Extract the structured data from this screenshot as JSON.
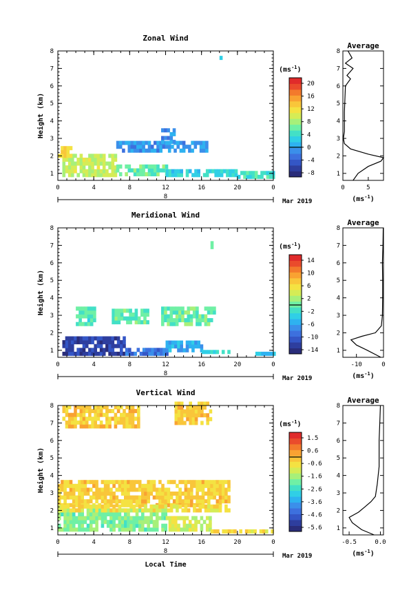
{
  "figure": {
    "xlabel": "Local Time",
    "ylabel": "Height (km)",
    "date_label": "Mar 2019",
    "day_marker": "8",
    "unit_label": "(ms",
    "unit_exp": "-1",
    "unit_close": ")",
    "average_title": "Average"
  },
  "chart_data": [
    {
      "type": "heatmap",
      "title": "Zonal Wind",
      "xlabel": "",
      "ylabel": "Height (km)",
      "x_ticks": [
        "0",
        "4",
        "8",
        "12",
        "16",
        "20",
        "0"
      ],
      "y_ticks": [
        "1",
        "2",
        "3",
        "4",
        "5",
        "6",
        "7",
        "8"
      ],
      "xlim": [
        0,
        24
      ],
      "ylim": [
        0.6,
        8
      ],
      "colorbar": {
        "ticks": [
          "20",
          "16",
          "12",
          "8",
          "4",
          "0",
          "-4",
          "-8"
        ],
        "range": [
          -10,
          22
        ]
      },
      "regions": [
        {
          "x": [
            0.5,
            6.5
          ],
          "y": [
            0.8,
            2.0
          ],
          "v": 9
        },
        {
          "x": [
            6.5,
            12
          ],
          "y": [
            0.85,
            1.5
          ],
          "v": 6
        },
        {
          "x": [
            12,
            20
          ],
          "y": [
            0.8,
            1.1
          ],
          "v": 3
        },
        {
          "x": [
            20,
            24
          ],
          "y": [
            0.7,
            1.0
          ],
          "v": 4
        },
        {
          "x": [
            0,
            1.5
          ],
          "y": [
            1.9,
            2.5
          ],
          "v": 13
        },
        {
          "x": [
            6.5,
            16.5
          ],
          "y": [
            2.2,
            2.7
          ],
          "v": -1
        },
        {
          "x": [
            11.5,
            13
          ],
          "y": [
            2.7,
            3.4
          ],
          "v": -2
        },
        {
          "x": [
            18,
            18.2
          ],
          "y": [
            7.5,
            7.7
          ],
          "v": 2
        }
      ],
      "average": {
        "x_ticks": [
          "0",
          "5"
        ],
        "xlim": [
          0,
          8
        ],
        "xlabel": "(ms",
        "profile": [
          {
            "h": 0.6,
            "v": 2
          },
          {
            "h": 1.0,
            "v": 3
          },
          {
            "h": 1.4,
            "v": 5
          },
          {
            "h": 1.7,
            "v": 7.5
          },
          {
            "h": 1.9,
            "v": 8
          },
          {
            "h": 2.1,
            "v": 5
          },
          {
            "h": 2.4,
            "v": 1.5
          },
          {
            "h": 2.7,
            "v": 0.3
          },
          {
            "h": 3.0,
            "v": 0.1
          },
          {
            "h": 3.4,
            "v": 0.3
          },
          {
            "h": 4.5,
            "v": 0.3
          },
          {
            "h": 6.0,
            "v": 0.5
          },
          {
            "h": 6.4,
            "v": 1.5
          },
          {
            "h": 6.6,
            "v": 0.8
          },
          {
            "h": 7.0,
            "v": 2
          },
          {
            "h": 7.3,
            "v": 0.5
          },
          {
            "h": 7.6,
            "v": 1.8
          },
          {
            "h": 8.0,
            "v": 1
          }
        ]
      }
    },
    {
      "type": "heatmap",
      "title": "Meridional Wind",
      "xlabel": "",
      "ylabel": "Height (km)",
      "x_ticks": [
        "0",
        "4",
        "8",
        "12",
        "16",
        "20",
        "0"
      ],
      "y_ticks": [
        "1",
        "2",
        "3",
        "4",
        "5",
        "6",
        "7",
        "8"
      ],
      "xlim": [
        0,
        24
      ],
      "ylim": [
        0.6,
        8
      ],
      "colorbar": {
        "ticks": [
          "14",
          "10",
          "6",
          "2",
          "-2",
          "-6",
          "-10",
          "-14"
        ],
        "range": [
          -16,
          16
        ]
      },
      "regions": [
        {
          "x": [
            0.5,
            7.5
          ],
          "y": [
            0.7,
            1.6
          ],
          "v": -13
        },
        {
          "x": [
            7.5,
            12
          ],
          "y": [
            0.7,
            1.1
          ],
          "v": -9
        },
        {
          "x": [
            12,
            16
          ],
          "y": [
            0.9,
            1.4
          ],
          "v": -6
        },
        {
          "x": [
            16,
            19
          ],
          "y": [
            0.8,
            1.0
          ],
          "v": -2
        },
        {
          "x": [
            22,
            24
          ],
          "y": [
            0.7,
            0.9
          ],
          "v": -4
        },
        {
          "x": [
            2,
            4
          ],
          "y": [
            2.4,
            3.3
          ],
          "v": -1
        },
        {
          "x": [
            6,
            10
          ],
          "y": [
            2.5,
            3.2
          ],
          "v": -0.5
        },
        {
          "x": [
            11.5,
            17.5
          ],
          "y": [
            2.4,
            3.3
          ],
          "v": 0
        },
        {
          "x": [
            17,
            17.3
          ],
          "y": [
            6.8,
            7.2
          ],
          "v": -1
        }
      ],
      "average": {
        "x_ticks": [
          "-10",
          "0"
        ],
        "xlim": [
          -15,
          0
        ],
        "xlabel": "(ms",
        "profile": [
          {
            "h": 0.6,
            "v": -1
          },
          {
            "h": 1.0,
            "v": -6
          },
          {
            "h": 1.3,
            "v": -10
          },
          {
            "h": 1.6,
            "v": -12
          },
          {
            "h": 1.8,
            "v": -8
          },
          {
            "h": 2.0,
            "v": -3
          },
          {
            "h": 2.4,
            "v": -0.8
          },
          {
            "h": 3.0,
            "v": -0.4
          },
          {
            "h": 4.0,
            "v": -0.3
          },
          {
            "h": 5.0,
            "v": -0.3
          },
          {
            "h": 6.0,
            "v": -0.4
          },
          {
            "h": 7.0,
            "v": -0.2
          },
          {
            "h": 8.0,
            "v": -0.1
          }
        ]
      }
    },
    {
      "type": "heatmap",
      "title": "Vertical Wind",
      "xlabel": "Local Time",
      "ylabel": "Height (km)",
      "x_ticks": [
        "0",
        "4",
        "8",
        "12",
        "16",
        "20",
        "0"
      ],
      "y_ticks": [
        "1",
        "2",
        "3",
        "4",
        "5",
        "6",
        "7",
        "8"
      ],
      "xlim": [
        0,
        24
      ],
      "ylim": [
        0.6,
        8
      ],
      "colorbar": {
        "ticks": [
          "1.5",
          "0.6",
          "-0.6",
          "-1.6",
          "-2.6",
          "-3.6",
          "-4.6",
          "-5.6"
        ],
        "range": [
          -6,
          2
        ]
      },
      "regions": [
        {
          "x": [
            0,
            12
          ],
          "y": [
            0.8,
            2.0
          ],
          "v": -1.8
        },
        {
          "x": [
            12,
            17
          ],
          "y": [
            0.8,
            1.5
          ],
          "v": -1.1
        },
        {
          "x": [
            17,
            24
          ],
          "y": [
            0.7,
            0.9
          ],
          "v": -0.5
        },
        {
          "x": [
            0,
            19
          ],
          "y": [
            2.2,
            3.6
          ],
          "v": -0.3
        },
        {
          "x": [
            0,
            19
          ],
          "y": [
            1.9,
            2.2
          ],
          "v": -0.6
        },
        {
          "x": [
            0.5,
            9
          ],
          "y": [
            6.7,
            8.0
          ],
          "v": -0.2
        },
        {
          "x": [
            13,
            17
          ],
          "y": [
            6.9,
            8.0
          ],
          "v": -0.2
        }
      ],
      "average": {
        "x_ticks": [
          "-0.5",
          "0.0"
        ],
        "xlim": [
          -0.6,
          0.05
        ],
        "xlabel": "(ms",
        "profile": [
          {
            "h": 0.6,
            "v": -0.1
          },
          {
            "h": 0.9,
            "v": -0.3
          },
          {
            "h": 1.3,
            "v": -0.45
          },
          {
            "h": 1.6,
            "v": -0.5
          },
          {
            "h": 1.9,
            "v": -0.35
          },
          {
            "h": 2.2,
            "v": -0.25
          },
          {
            "h": 2.5,
            "v": -0.15
          },
          {
            "h": 2.8,
            "v": -0.08
          },
          {
            "h": 3.5,
            "v": -0.05
          },
          {
            "h": 4.5,
            "v": -0.02
          },
          {
            "h": 6.0,
            "v": -0.02
          },
          {
            "h": 7.0,
            "v": -0.01
          },
          {
            "h": 8.0,
            "v": 0
          }
        ]
      }
    }
  ]
}
